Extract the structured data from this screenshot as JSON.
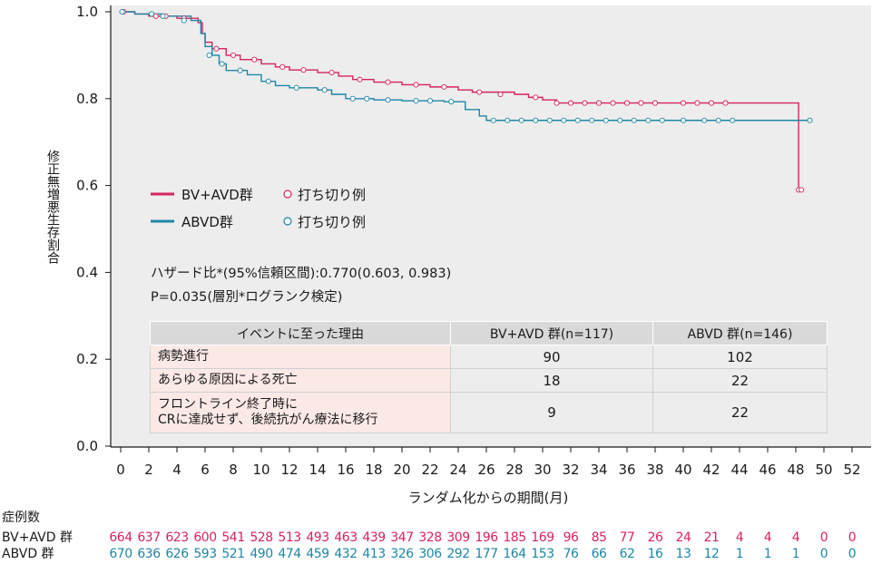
{
  "chart_data": {
    "type": "line",
    "subtype": "kaplan-meier",
    "ylabel": "修正無増悪生存割合",
    "xlabel": "ランダム化からの期間(月)",
    "xlim": [
      0,
      52
    ],
    "ylim": [
      0.0,
      1.0
    ],
    "x_ticks": [
      0,
      2,
      4,
      6,
      8,
      10,
      12,
      14,
      16,
      18,
      20,
      22,
      24,
      26,
      28,
      30,
      32,
      34,
      36,
      38,
      40,
      42,
      44,
      46,
      48,
      50,
      52
    ],
    "y_ticks": [
      "0.0",
      "0.2",
      "0.4",
      "0.6",
      "0.8",
      "1.0"
    ],
    "grid": false,
    "legend_position": "middle-left",
    "legend": [
      {
        "name": "BV+AVD群",
        "censor_label": "打ち切り例",
        "color": "#d6245c"
      },
      {
        "name": "ABVD群",
        "censor_label": "打ち切り例",
        "color": "#1f86a6"
      }
    ],
    "series": [
      {
        "name": "BV+AVD群",
        "color": "#d6245c",
        "steps": [
          [
            0,
            1.0
          ],
          [
            1,
            0.995
          ],
          [
            2,
            0.99
          ],
          [
            4,
            0.985
          ],
          [
            5.5,
            0.975
          ],
          [
            5.8,
            0.95
          ],
          [
            6,
            0.93
          ],
          [
            6.5,
            0.915
          ],
          [
            7.5,
            0.9
          ],
          [
            8.5,
            0.89
          ],
          [
            10,
            0.88
          ],
          [
            11,
            0.873
          ],
          [
            12,
            0.866
          ],
          [
            14,
            0.86
          ],
          [
            15.5,
            0.852
          ],
          [
            16.5,
            0.844
          ],
          [
            18,
            0.838
          ],
          [
            20,
            0.832
          ],
          [
            22,
            0.827
          ],
          [
            24,
            0.82
          ],
          [
            25,
            0.815
          ],
          [
            28,
            0.81
          ],
          [
            29,
            0.803
          ],
          [
            30,
            0.797
          ],
          [
            31,
            0.79
          ],
          [
            48,
            0.79
          ],
          [
            48.2,
            0.59
          ],
          [
            48.5,
            0.59
          ]
        ],
        "censored": [
          [
            0.2,
            1.0
          ],
          [
            2.5,
            0.99
          ],
          [
            3.2,
            0.99
          ],
          [
            4.5,
            0.985
          ],
          [
            6.8,
            0.915
          ],
          [
            8,
            0.9
          ],
          [
            9.5,
            0.89
          ],
          [
            11.5,
            0.873
          ],
          [
            13,
            0.866
          ],
          [
            15,
            0.86
          ],
          [
            17,
            0.844
          ],
          [
            19,
            0.838
          ],
          [
            21,
            0.832
          ],
          [
            23,
            0.827
          ],
          [
            25.5,
            0.815
          ],
          [
            27,
            0.81
          ],
          [
            29.5,
            0.803
          ],
          [
            31,
            0.79
          ],
          [
            32,
            0.79
          ],
          [
            33,
            0.79
          ],
          [
            34,
            0.79
          ],
          [
            35,
            0.79
          ],
          [
            36,
            0.79
          ],
          [
            37,
            0.79
          ],
          [
            38,
            0.79
          ],
          [
            40,
            0.79
          ],
          [
            41,
            0.79
          ],
          [
            42,
            0.79
          ],
          [
            43,
            0.79
          ],
          [
            48.2,
            0.59
          ],
          [
            48.4,
            0.59
          ]
        ]
      },
      {
        "name": "ABVD群",
        "color": "#1f86a6",
        "steps": [
          [
            0,
            1.0
          ],
          [
            1,
            0.995
          ],
          [
            3,
            0.99
          ],
          [
            5,
            0.98
          ],
          [
            5.7,
            0.95
          ],
          [
            6,
            0.92
          ],
          [
            6.5,
            0.9
          ],
          [
            7,
            0.88
          ],
          [
            7.5,
            0.865
          ],
          [
            9,
            0.855
          ],
          [
            10,
            0.84
          ],
          [
            11,
            0.83
          ],
          [
            12,
            0.825
          ],
          [
            14,
            0.82
          ],
          [
            15,
            0.81
          ],
          [
            16,
            0.8
          ],
          [
            18,
            0.797
          ],
          [
            20,
            0.795
          ],
          [
            23,
            0.793
          ],
          [
            24.5,
            0.775
          ],
          [
            25.5,
            0.76
          ],
          [
            26,
            0.75
          ],
          [
            49,
            0.75
          ]
        ],
        "censored": [
          [
            0.1,
            1.0
          ],
          [
            2.2,
            0.995
          ],
          [
            3,
            0.99
          ],
          [
            4.5,
            0.98
          ],
          [
            6.3,
            0.9
          ],
          [
            7.2,
            0.88
          ],
          [
            8.5,
            0.865
          ],
          [
            10.5,
            0.84
          ],
          [
            12.5,
            0.825
          ],
          [
            14.5,
            0.82
          ],
          [
            16.5,
            0.8
          ],
          [
            17.5,
            0.8
          ],
          [
            19,
            0.797
          ],
          [
            21,
            0.795
          ],
          [
            22,
            0.795
          ],
          [
            23.5,
            0.793
          ],
          [
            26.5,
            0.75
          ],
          [
            27.5,
            0.75
          ],
          [
            28.5,
            0.75
          ],
          [
            29.5,
            0.75
          ],
          [
            30.5,
            0.75
          ],
          [
            31.5,
            0.75
          ],
          [
            32.5,
            0.75
          ],
          [
            33.5,
            0.75
          ],
          [
            34.5,
            0.75
          ],
          [
            35.5,
            0.75
          ],
          [
            36.5,
            0.75
          ],
          [
            37.5,
            0.75
          ],
          [
            38.5,
            0.75
          ],
          [
            40,
            0.75
          ],
          [
            41.5,
            0.75
          ],
          [
            42.5,
            0.75
          ],
          [
            43.5,
            0.75
          ],
          [
            49,
            0.75
          ]
        ]
      }
    ]
  },
  "annotation": {
    "hr_line": "ハザード比*(95%信頼区間):0.770(0.603, 0.983)",
    "p_line": "P=0.035(層別*ログランク検定)"
  },
  "event_table": {
    "headers": [
      "イベントに至った理由",
      "BV+AVD 群(n=117)",
      "ABVD 群(n=146)"
    ],
    "rows": [
      {
        "reason_lines": [
          "病勢進行"
        ],
        "bv": "90",
        "abvd": "102"
      },
      {
        "reason_lines": [
          "あらゆる原因による死亡"
        ],
        "bv": "18",
        "abvd": "22"
      },
      {
        "reason_lines": [
          "フロントライン終了時に",
          "CRに達成せず、後続抗がん療法に移行"
        ],
        "bv": "9",
        "abvd": "22"
      }
    ]
  },
  "number_at_risk": {
    "title": "症例数",
    "rows": [
      {
        "label": "BV+AVD 群",
        "color": "#d6245c",
        "values": [
          "664",
          "637",
          "623",
          "600",
          "541",
          "528",
          "513",
          "493",
          "463",
          "439",
          "347",
          "328",
          "309",
          "196",
          "185",
          "169",
          "96",
          "85",
          "77",
          "26",
          "24",
          "21",
          "4",
          "4",
          "4",
          "0",
          "0"
        ]
      },
      {
        "label": "ABVD 群",
        "color": "#1f86a6",
        "values": [
          "670",
          "636",
          "626",
          "593",
          "521",
          "490",
          "474",
          "459",
          "432",
          "413",
          "326",
          "306",
          "292",
          "177",
          "164",
          "153",
          "76",
          "66",
          "62",
          "16",
          "13",
          "12",
          "1",
          "1",
          "1",
          "0",
          "0"
        ]
      }
    ]
  }
}
